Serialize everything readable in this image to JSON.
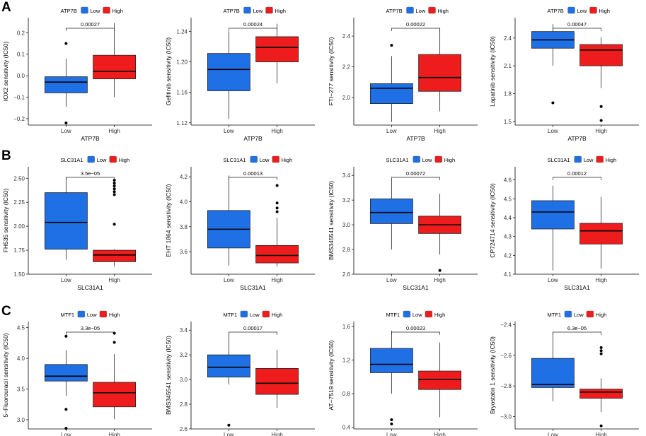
{
  "colors": {
    "low": "#1f6fe5",
    "high": "#ee1c1c",
    "axis": "#000000",
    "median": "#000000"
  },
  "row_labels": [
    "A",
    "B",
    "C"
  ],
  "chart_data": [
    {
      "type": "boxplot",
      "row": "A",
      "title": "",
      "gene": "ATP7B",
      "xlabel": "ATP7B",
      "ylabel": "IOX2 sensitivity (IC50)",
      "categories": [
        "Low",
        "High"
      ],
      "legend": [
        "Low",
        "High"
      ],
      "ylim": [
        -0.23,
        0.27
      ],
      "yticks": [
        -0.2,
        -0.1,
        0.0,
        0.1,
        0.2
      ],
      "yticklabels": [
        "−0.2",
        "−0.1",
        "0.0",
        "0.1",
        "0.2"
      ],
      "boxes": [
        {
          "group": "Low",
          "min": -0.145,
          "q1": -0.08,
          "median": -0.03,
          "q3": -0.005,
          "max": 0.08,
          "outliers": [
            0.15,
            -0.22
          ]
        },
        {
          "group": "High",
          "min": -0.1,
          "q1": -0.015,
          "median": 0.02,
          "q3": 0.095,
          "max": 0.245,
          "outliers": []
        }
      ],
      "pvalue": "0.00027"
    },
    {
      "type": "boxplot",
      "row": "A",
      "title": "",
      "gene": "ATP7B",
      "xlabel": "ATP7B",
      "ylabel": "Gefitinib sensitivity (IC50)",
      "categories": [
        "Low",
        "High"
      ],
      "legend": [
        "Low",
        "High"
      ],
      "ylim": [
        1.117,
        1.258
      ],
      "yticks": [
        1.12,
        1.16,
        1.2,
        1.24
      ],
      "yticklabels": [
        "1.12",
        "1.16",
        "1.20",
        "1.24"
      ],
      "boxes": [
        {
          "group": "Low",
          "min": 1.125,
          "q1": 1.162,
          "median": 1.19,
          "q3": 1.211,
          "max": 1.24,
          "outliers": []
        },
        {
          "group": "High",
          "min": 1.172,
          "q1": 1.2,
          "median": 1.219,
          "q3": 1.233,
          "max": 1.25,
          "outliers": []
        }
      ],
      "pvalue": "0.00024"
    },
    {
      "type": "boxplot",
      "row": "A",
      "title": "",
      "gene": "ATP7B",
      "xlabel": "ATP7B",
      "ylabel": "FTI−277 sensitivity (IC50)",
      "categories": [
        "Low",
        "High"
      ],
      "legend": [
        "Low",
        "High"
      ],
      "ylim": [
        1.82,
        2.52
      ],
      "yticks": [
        2.0,
        2.2,
        2.4
      ],
      "yticklabels": [
        "2.0",
        "2.2",
        "2.4"
      ],
      "boxes": [
        {
          "group": "Low",
          "min": 1.84,
          "q1": 1.96,
          "median": 2.06,
          "q3": 2.09,
          "max": 2.27,
          "outliers": [
            2.34
          ]
        },
        {
          "group": "High",
          "min": 1.91,
          "q1": 2.04,
          "median": 2.13,
          "q3": 2.28,
          "max": 2.45,
          "outliers": []
        }
      ],
      "pvalue": "0.00022"
    },
    {
      "type": "boxplot",
      "row": "A",
      "title": "",
      "gene": "ATP7B",
      "xlabel": "ATP7B",
      "ylabel": "Lapatinib sensitivity (IC50)",
      "categories": [
        "Low",
        "High"
      ],
      "legend": [
        "Low",
        "High"
      ],
      "ylim": [
        1.46,
        2.62
      ],
      "yticks": [
        1.5,
        1.8,
        2.1,
        2.4
      ],
      "yticklabels": [
        "1.5",
        "1.8",
        "2.1",
        "2.4"
      ],
      "boxes": [
        {
          "group": "Low",
          "min": 2.1,
          "q1": 2.29,
          "median": 2.38,
          "q3": 2.47,
          "max": 2.55,
          "outliers": [
            1.7
          ]
        },
        {
          "group": "High",
          "min": 1.86,
          "q1": 2.1,
          "median": 2.27,
          "q3": 2.33,
          "max": 2.41,
          "outliers": [
            1.66,
            1.51
          ]
        }
      ],
      "pvalue": "0.00047"
    },
    {
      "type": "boxplot",
      "row": "B",
      "title": "",
      "gene": "SLC31A1",
      "xlabel": "SLC31A1",
      "ylabel": "FH535 sensitivity (IC50)",
      "categories": [
        "Low",
        "High"
      ],
      "legend": [
        "Low",
        "High"
      ],
      "ylim": [
        1.5,
        2.62
      ],
      "yticks": [
        1.5,
        1.75,
        2.0,
        2.25,
        2.5
      ],
      "yticklabels": [
        "1.50",
        "1.75",
        "2.00",
        "2.25",
        "2.50"
      ],
      "boxes": [
        {
          "group": "Low",
          "min": 1.65,
          "q1": 1.76,
          "median": 2.04,
          "q3": 2.35,
          "max": 2.51,
          "outliers": []
        },
        {
          "group": "High",
          "min": 1.58,
          "q1": 1.63,
          "median": 1.7,
          "q3": 1.75,
          "max": 1.76,
          "outliers": [
            2.02,
            2.33,
            2.36,
            2.39,
            2.42,
            2.45,
            2.48
          ]
        }
      ],
      "pvalue": "3.5e−05"
    },
    {
      "type": "boxplot",
      "row": "B",
      "title": "",
      "gene": "SLC31A1",
      "xlabel": "SLC31A1",
      "ylabel": "EHT 1864 sensitivity (IC50)",
      "categories": [
        "Low",
        "High"
      ],
      "legend": [
        "Low",
        "High"
      ],
      "ylim": [
        3.42,
        4.28
      ],
      "yticks": [
        3.6,
        3.8,
        4.0,
        4.2
      ],
      "yticklabels": [
        "3.6",
        "3.8",
        "4.0",
        "4.2"
      ],
      "boxes": [
        {
          "group": "Low",
          "min": 3.49,
          "q1": 3.63,
          "median": 3.78,
          "q3": 3.93,
          "max": 4.21,
          "outliers": []
        },
        {
          "group": "High",
          "min": 3.48,
          "q1": 3.51,
          "median": 3.57,
          "q3": 3.65,
          "max": 3.87,
          "outliers": [
            3.92,
            3.95,
            3.99,
            4.13
          ]
        }
      ],
      "pvalue": "0.00013"
    },
    {
      "type": "boxplot",
      "row": "B",
      "title": "",
      "gene": "SLC31A1",
      "xlabel": "SLC31A1",
      "ylabel": "BMS345541 sensitivity (IC50)",
      "categories": [
        "Low",
        "High"
      ],
      "legend": [
        "Low",
        "High"
      ],
      "ylim": [
        2.6,
        3.47
      ],
      "yticks": [
        2.6,
        2.8,
        3.0,
        3.2,
        3.4
      ],
      "yticklabels": [
        "2.6",
        "2.8",
        "3.0",
        "3.2",
        "3.4"
      ],
      "boxes": [
        {
          "group": "Low",
          "min": 2.8,
          "q1": 3.01,
          "median": 3.1,
          "q3": 3.21,
          "max": 3.37,
          "outliers": []
        },
        {
          "group": "High",
          "min": 2.76,
          "q1": 2.93,
          "median": 3.0,
          "q3": 3.07,
          "max": 3.25,
          "outliers": [
            2.63
          ]
        }
      ],
      "pvalue": "0.00072"
    },
    {
      "type": "boxplot",
      "row": "B",
      "title": "",
      "gene": "SLC31A1",
      "xlabel": "SLC31A1",
      "ylabel": "CP724714 sensitivity (IC50)",
      "categories": [
        "Low",
        "High"
      ],
      "legend": [
        "Low",
        "High"
      ],
      "ylim": [
        4.1,
        4.67
      ],
      "yticks": [
        4.1,
        4.2,
        4.3,
        4.4,
        4.5,
        4.6
      ],
      "yticklabels": [
        "4.1",
        "4.2",
        "4.3",
        "4.4",
        "4.5",
        "4.6"
      ],
      "boxes": [
        {
          "group": "Low",
          "min": 4.12,
          "q1": 4.34,
          "median": 4.43,
          "q3": 4.49,
          "max": 4.57,
          "outliers": []
        },
        {
          "group": "High",
          "min": 4.13,
          "q1": 4.26,
          "median": 4.33,
          "q3": 4.37,
          "max": 4.51,
          "outliers": []
        }
      ],
      "pvalue": "0.00012"
    },
    {
      "type": "boxplot",
      "row": "C",
      "title": "",
      "gene": "MTF1",
      "xlabel": "MTF1",
      "ylabel": "5−Fluorouracil sensitivity (IC50)",
      "categories": [
        "Low",
        "High"
      ],
      "legend": [
        "Low",
        "High"
      ],
      "ylim": [
        2.85,
        4.6
      ],
      "yticks": [
        3.0,
        3.5,
        4.0,
        4.5
      ],
      "yticklabels": [
        "3.0",
        "3.5",
        "4.0",
        "4.5"
      ],
      "boxes": [
        {
          "group": "Low",
          "min": 3.39,
          "q1": 3.63,
          "median": 3.71,
          "q3": 3.9,
          "max": 4.13,
          "outliers": [
            4.36,
            3.17,
            2.86
          ]
        },
        {
          "group": "High",
          "min": 3.01,
          "q1": 3.21,
          "median": 3.44,
          "q3": 3.61,
          "max": 4.07,
          "outliers": [
            4.26,
            4.41
          ]
        }
      ],
      "pvalue": "3.3e−05"
    },
    {
      "type": "boxplot",
      "row": "C",
      "title": "",
      "gene": "MTF1",
      "xlabel": "MTF1",
      "ylabel": "BMS345541 sensitivity (IC50)",
      "categories": [
        "Low",
        "High"
      ],
      "legend": [
        "Low",
        "High"
      ],
      "ylim": [
        2.6,
        3.47
      ],
      "yticks": [
        2.6,
        2.8,
        3.0,
        3.2,
        3.4
      ],
      "yticklabels": [
        "2.6",
        "2.8",
        "3.0",
        "3.2",
        "3.4"
      ],
      "boxes": [
        {
          "group": "Low",
          "min": 2.96,
          "q1": 3.02,
          "median": 3.1,
          "q3": 3.2,
          "max": 3.37,
          "outliers": [
            2.63
          ]
        },
        {
          "group": "High",
          "min": 2.77,
          "q1": 2.88,
          "median": 2.97,
          "q3": 3.09,
          "max": 3.24,
          "outliers": []
        }
      ],
      "pvalue": "0.00017"
    },
    {
      "type": "boxplot",
      "row": "C",
      "title": "",
      "gene": "MTF1",
      "xlabel": "MTF1",
      "ylabel": "AT−7519 sensitivity (IC50)",
      "categories": [
        "Low",
        "High"
      ],
      "legend": [
        "Low",
        "High"
      ],
      "ylim": [
        0.38,
        1.66
      ],
      "yticks": [
        0.4,
        0.8,
        1.2,
        1.6
      ],
      "yticklabels": [
        "0.4",
        "0.8",
        "1.2",
        "1.6"
      ],
      "boxes": [
        {
          "group": "Low",
          "min": 0.8,
          "q1": 1.05,
          "median": 1.15,
          "q3": 1.34,
          "max": 1.55,
          "outliers": [
            0.49,
            0.44
          ]
        },
        {
          "group": "High",
          "min": 0.52,
          "q1": 0.85,
          "median": 0.97,
          "q3": 1.07,
          "max": 1.41,
          "outliers": []
        }
      ],
      "pvalue": "0.00023"
    },
    {
      "type": "boxplot",
      "row": "C",
      "title": "",
      "gene": "MTF1",
      "xlabel": "MTF1",
      "ylabel": "Bryostatin 1 sensitivity (IC50)",
      "categories": [
        "Low",
        "High"
      ],
      "legend": [
        "Low",
        "High"
      ],
      "ylim": [
        -3.08,
        -2.38
      ],
      "yticks": [
        -3.0,
        -2.8,
        -2.6,
        -2.4
      ],
      "yticklabels": [
        "−3.0",
        "−2.8",
        "−2.6",
        "−2.4"
      ],
      "boxes": [
        {
          "group": "Low",
          "min": -2.9,
          "q1": -2.81,
          "median": -2.79,
          "q3": -2.62,
          "max": -2.45,
          "outliers": []
        },
        {
          "group": "High",
          "min": -2.97,
          "q1": -2.88,
          "median": -2.84,
          "q3": -2.82,
          "max": -2.75,
          "outliers": [
            -2.55,
            -2.57,
            -2.59,
            -3.06
          ]
        }
      ],
      "pvalue": "6.3e−05"
    }
  ]
}
